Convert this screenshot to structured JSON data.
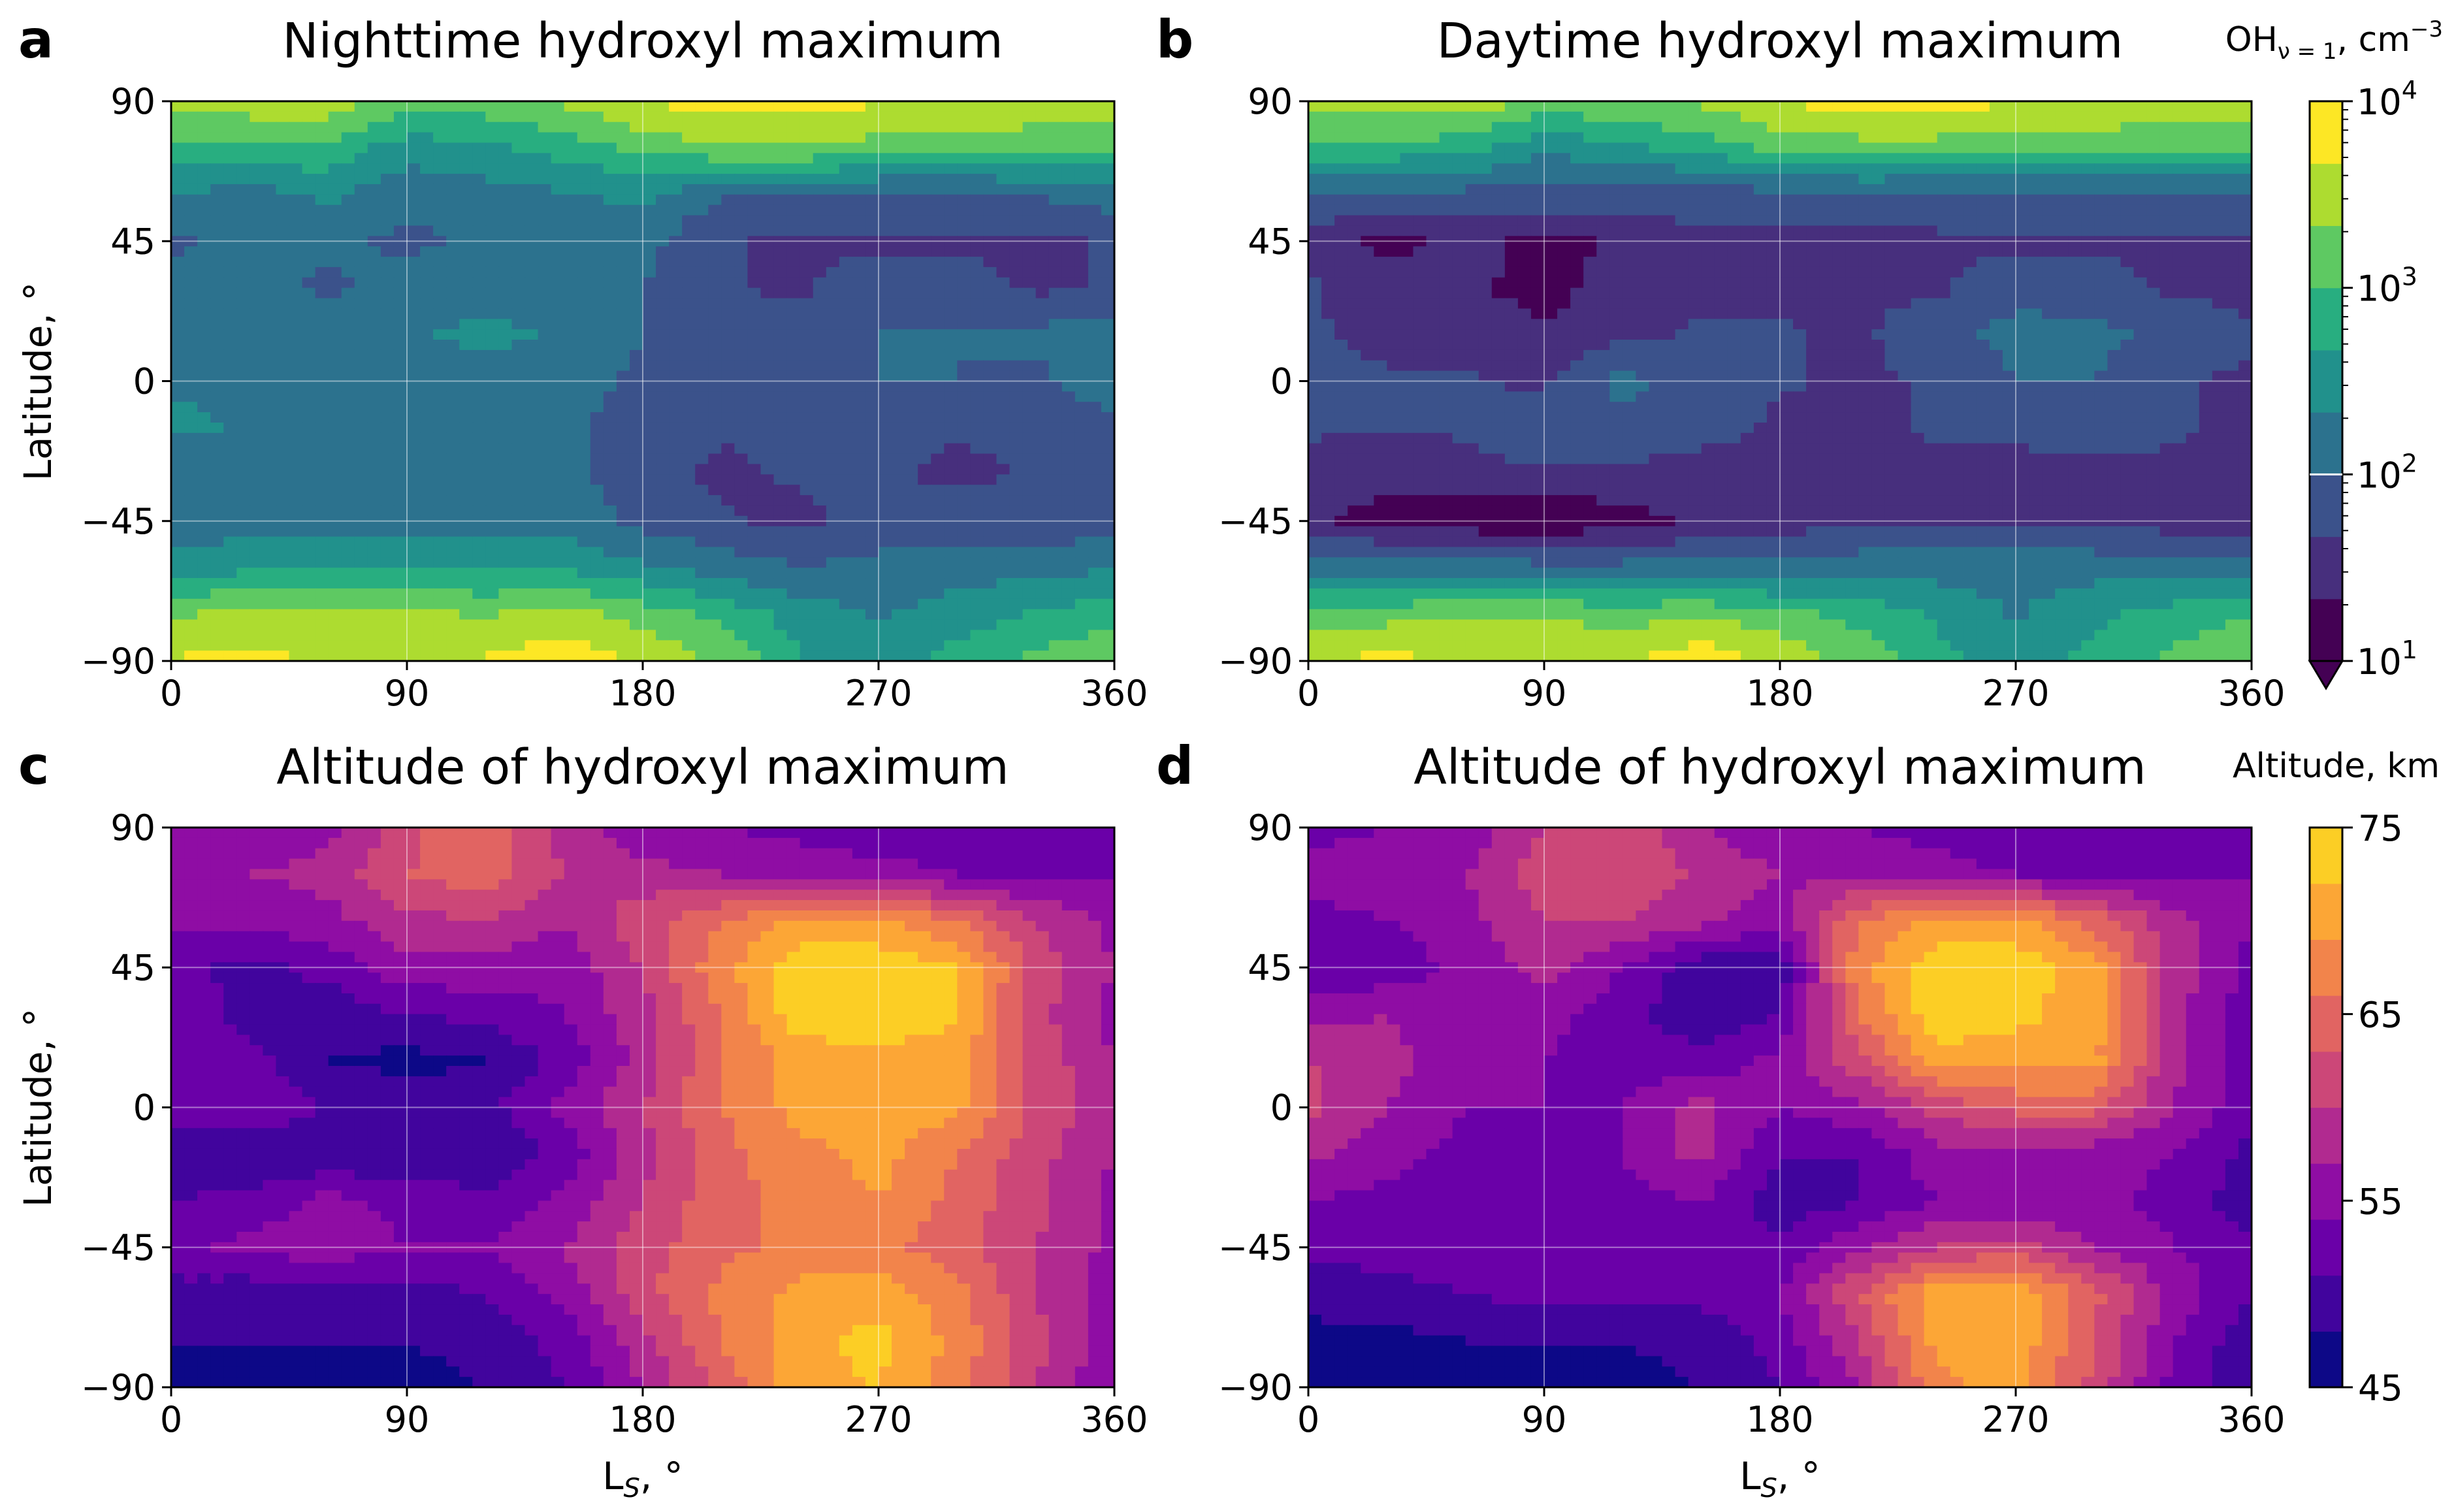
{
  "figure": {
    "panel_letters": [
      "a",
      "b",
      "c",
      "d"
    ],
    "colorbar_top": {
      "label": "OH",
      "label_sub": "ν = 1",
      "label_unit": ", cm",
      "label_sup": "−3",
      "ticks": [
        {
          "base": "10",
          "exp": "4",
          "value_log10": 4
        },
        {
          "base": "10",
          "exp": "3",
          "value_log10": 3
        },
        {
          "base": "10",
          "exp": "2",
          "value_log10": 2
        },
        {
          "base": "10",
          "exp": "1",
          "value_log10": 1
        }
      ],
      "range_log10": [
        1,
        4
      ],
      "marker_log10": 2,
      "colormap": "viridis",
      "colors": [
        "#440154",
        "#472f7d",
        "#3b528b",
        "#2c728e",
        "#21918c",
        "#28ae80",
        "#5ec962",
        "#addc30",
        "#fde725"
      ]
    },
    "colorbar_bottom": {
      "label": "Altitude, km",
      "ticks": [
        "75",
        "65",
        "55",
        "45"
      ],
      "tick_values": [
        75,
        65,
        55,
        45
      ],
      "range": [
        45,
        75
      ],
      "colormap": "plasma",
      "colors": [
        "#0d0887",
        "#41049d",
        "#6a00a8",
        "#8f0da4",
        "#b12a90",
        "#cc4778",
        "#e16462",
        "#f2844b",
        "#fca636",
        "#fcce25"
      ]
    }
  },
  "chart_data": [
    {
      "type": "heatmap",
      "panel": "a",
      "title": "Nighttime hydroxyl maximum",
      "xlabel": "",
      "ylabel": "Latitude, °",
      "x_ticks": [
        "0",
        "90",
        "180",
        "270",
        "360"
      ],
      "y_ticks": [
        "90",
        "45",
        "0",
        "−45",
        "−90"
      ],
      "xlim": [
        0,
        360
      ],
      "ylim": [
        -90,
        90
      ],
      "grid": true,
      "colorbar": "colorbar_top",
      "x_nodes": [
        0,
        30,
        60,
        90,
        120,
        150,
        180,
        210,
        240,
        270,
        300,
        330,
        360
      ],
      "lat_nodes": [
        90,
        75,
        60,
        45,
        30,
        15,
        0,
        -15,
        -30,
        -45,
        -60,
        -75,
        -90
      ],
      "z_log10_rows": [
        [
          3.4,
          3.5,
          3.6,
          3.1,
          3.2,
          3.4,
          3.7,
          3.8,
          3.8,
          3.7,
          3.7,
          3.6,
          3.5
        ],
        [
          2.9,
          3.0,
          2.9,
          2.5,
          2.6,
          2.8,
          3.1,
          3.3,
          3.3,
          3.2,
          3.1,
          3.1,
          3.0
        ],
        [
          2.3,
          2.2,
          2.4,
          2.1,
          2.2,
          2.3,
          2.4,
          2.0,
          2.0,
          1.9,
          1.9,
          2.0,
          2.2
        ],
        [
          1.9,
          2.2,
          2.1,
          1.9,
          2.1,
          2.2,
          2.1,
          1.7,
          1.6,
          1.6,
          1.6,
          1.6,
          1.7
        ],
        [
          2.2,
          2.2,
          1.9,
          2.2,
          2.2,
          2.3,
          2.0,
          1.7,
          1.6,
          1.9,
          1.8,
          1.6,
          1.7
        ],
        [
          2.3,
          2.3,
          2.3,
          2.3,
          2.4,
          2.3,
          2.0,
          1.8,
          1.9,
          2.0,
          2.0,
          2.1,
          2.2
        ],
        [
          2.3,
          2.3,
          2.3,
          2.2,
          2.2,
          2.2,
          1.9,
          1.8,
          1.9,
          2.0,
          2.0,
          1.9,
          2.3
        ],
        [
          2.4,
          2.3,
          2.2,
          2.2,
          2.2,
          2.1,
          1.8,
          1.7,
          1.8,
          1.8,
          1.7,
          1.7,
          1.8
        ],
        [
          2.1,
          2.2,
          2.2,
          2.2,
          2.2,
          2.1,
          1.8,
          1.6,
          1.7,
          1.7,
          1.6,
          1.7,
          1.7
        ],
        [
          2.0,
          2.2,
          2.2,
          2.2,
          2.2,
          2.2,
          1.9,
          1.7,
          1.6,
          1.8,
          1.8,
          1.8,
          1.8
        ],
        [
          2.5,
          2.6,
          2.7,
          2.6,
          2.6,
          2.6,
          2.4,
          2.2,
          2.0,
          2.1,
          2.2,
          2.2,
          2.3
        ],
        [
          3.3,
          3.4,
          3.5,
          3.4,
          3.3,
          3.5,
          3.2,
          2.9,
          2.5,
          2.3,
          2.5,
          2.7,
          2.9
        ],
        [
          3.7,
          3.8,
          3.6,
          3.6,
          3.7,
          3.9,
          3.6,
          3.3,
          2.7,
          2.4,
          2.8,
          3.1,
          3.3
        ]
      ]
    },
    {
      "type": "heatmap",
      "panel": "b",
      "title": "Daytime hydroxyl maximum",
      "xlabel": "",
      "ylabel": "",
      "x_ticks": [
        "0",
        "90",
        "180",
        "270",
        "360"
      ],
      "y_ticks": [
        "90",
        "45",
        "0",
        "−45",
        "−90"
      ],
      "xlim": [
        0,
        360
      ],
      "ylim": [
        -90,
        90
      ],
      "grid": true,
      "colorbar": "colorbar_top",
      "x_nodes": [
        0,
        30,
        60,
        90,
        120,
        150,
        180,
        210,
        240,
        270,
        300,
        330,
        360
      ],
      "lat_nodes": [
        90,
        75,
        60,
        45,
        30,
        15,
        0,
        -15,
        -30,
        -45,
        -60,
        -75,
        -90
      ],
      "z_log10_rows": [
        [
          3.4,
          3.5,
          3.6,
          3.2,
          3.3,
          3.4,
          3.7,
          3.8,
          3.8,
          3.7,
          3.7,
          3.6,
          3.5
        ],
        [
          2.9,
          2.9,
          2.8,
          2.4,
          2.6,
          2.8,
          3.1,
          3.2,
          3.2,
          3.1,
          3.1,
          3.0,
          3.0
        ],
        [
          2.0,
          1.9,
          1.9,
          1.9,
          1.9,
          1.8,
          1.9,
          1.9,
          1.9,
          1.9,
          1.9,
          1.9,
          2.0
        ],
        [
          1.6,
          1.2,
          1.5,
          1.2,
          1.4,
          1.6,
          1.6,
          1.5,
          1.6,
          1.6,
          1.6,
          1.6,
          1.6
        ],
        [
          1.7,
          1.5,
          1.4,
          1.2,
          1.5,
          1.6,
          1.6,
          1.6,
          1.6,
          1.9,
          1.8,
          1.6,
          1.6
        ],
        [
          1.7,
          1.6,
          1.5,
          1.4,
          1.6,
          1.7,
          1.7,
          1.6,
          1.9,
          2.1,
          2.1,
          1.9,
          1.7
        ],
        [
          1.7,
          1.7,
          1.7,
          1.6,
          2.1,
          1.8,
          1.7,
          1.6,
          1.7,
          2.0,
          2.0,
          1.7,
          1.6
        ],
        [
          1.7,
          1.7,
          1.7,
          1.9,
          1.9,
          1.8,
          1.6,
          1.6,
          1.7,
          1.7,
          1.8,
          1.7,
          1.6
        ],
        [
          1.6,
          1.4,
          1.6,
          1.6,
          1.6,
          1.5,
          1.5,
          1.6,
          1.6,
          1.6,
          1.6,
          1.6,
          1.6
        ],
        [
          1.4,
          1.2,
          1.1,
          1.0,
          1.2,
          1.4,
          1.5,
          1.6,
          1.6,
          1.6,
          1.6,
          1.5,
          1.4
        ],
        [
          2.2,
          2.2,
          2.2,
          2.1,
          2.1,
          2.1,
          2.1,
          2.2,
          2.2,
          2.2,
          2.2,
          2.2,
          2.2
        ],
        [
          3.1,
          3.2,
          3.3,
          3.3,
          3.2,
          3.3,
          3.1,
          2.9,
          2.6,
          2.3,
          2.6,
          2.8,
          3.0
        ],
        [
          3.6,
          3.8,
          3.6,
          3.7,
          3.6,
          3.9,
          3.6,
          3.2,
          2.8,
          2.4,
          2.8,
          3.1,
          3.3
        ]
      ]
    },
    {
      "type": "heatmap",
      "panel": "c",
      "title": "Altitude of hydroxyl maximum",
      "xlabel": "L",
      "xlabel_sub": "S",
      "xlabel_suffix": ", °",
      "ylabel": "Latitude, °",
      "x_ticks": [
        "0",
        "90",
        "180",
        "270",
        "360"
      ],
      "y_ticks": [
        "90",
        "45",
        "0",
        "−45",
        "−90"
      ],
      "xlim": [
        0,
        360
      ],
      "ylim": [
        -90,
        90
      ],
      "grid": true,
      "colorbar": "colorbar_bottom",
      "x_nodes": [
        0,
        30,
        60,
        90,
        120,
        150,
        180,
        210,
        240,
        270,
        300,
        330,
        360
      ],
      "lat_nodes": [
        90,
        75,
        60,
        45,
        30,
        15,
        0,
        -15,
        -30,
        -45,
        -60,
        -75,
        -90
      ],
      "z_rows": [
        [
          54,
          55,
          56,
          62,
          66,
          58,
          55,
          54,
          53,
          52,
          52,
          51,
          52
        ],
        [
          56,
          57,
          58,
          63,
          65,
          60,
          58,
          57,
          56,
          55,
          54,
          53,
          54
        ],
        [
          55,
          55,
          56,
          59,
          60,
          57,
          62,
          66,
          70,
          70,
          66,
          60,
          56
        ],
        [
          52,
          50,
          52,
          56,
          56,
          55,
          60,
          68,
          74,
          74,
          72,
          62,
          57
        ],
        [
          53,
          50,
          49,
          51,
          52,
          54,
          59,
          66,
          74,
          74,
          72,
          61,
          56
        ],
        [
          52,
          52,
          48,
          47,
          48,
          52,
          58,
          66,
          70,
          71,
          71,
          62,
          57
        ],
        [
          53,
          54,
          51,
          50,
          50,
          55,
          60,
          66,
          70,
          71,
          70,
          62,
          58
        ],
        [
          49,
          48,
          48,
          49,
          48,
          52,
          59,
          65,
          68,
          70,
          66,
          61,
          57
        ],
        [
          51,
          52,
          55,
          53,
          52,
          55,
          60,
          65,
          67,
          69,
          65,
          61,
          56
        ],
        [
          53,
          55,
          56,
          54,
          54,
          57,
          62,
          65,
          67,
          67,
          64,
          60,
          56
        ],
        [
          50,
          49,
          49,
          50,
          51,
          55,
          62,
          67,
          70,
          71,
          67,
          60,
          55
        ],
        [
          48,
          48,
          48,
          48,
          49,
          52,
          59,
          66,
          71,
          73,
          68,
          61,
          55
        ],
        [
          47,
          47,
          47,
          47,
          48,
          51,
          57,
          64,
          71,
          72,
          67,
          60,
          54
        ]
      ]
    },
    {
      "type": "heatmap",
      "panel": "d",
      "title": "Altitude of hydroxyl maximum",
      "xlabel": "L",
      "xlabel_sub": "S",
      "xlabel_suffix": ", °",
      "ylabel": "",
      "x_ticks": [
        "0",
        "90",
        "180",
        "270",
        "360"
      ],
      "y_ticks": [
        "90",
        "45",
        "0",
        "−45",
        "−90"
      ],
      "xlim": [
        0,
        360
      ],
      "ylim": [
        -90,
        90
      ],
      "grid": true,
      "colorbar": "colorbar_bottom",
      "x_nodes": [
        0,
        30,
        60,
        90,
        120,
        150,
        180,
        210,
        240,
        270,
        300,
        330,
        360
      ],
      "lat_nodes": [
        90,
        75,
        60,
        45,
        30,
        15,
        0,
        -15,
        -30,
        -45,
        -60,
        -75,
        -90
      ],
      "z_rows": [
        [
          53,
          54,
          55,
          60,
          63,
          57,
          55,
          54,
          53,
          52,
          52,
          51,
          52
        ],
        [
          55,
          56,
          57,
          62,
          63,
          59,
          57,
          56,
          55,
          54,
          53,
          53,
          54
        ],
        [
          53,
          54,
          56,
          60,
          60,
          58,
          55,
          66,
          70,
          70,
          65,
          58,
          54
        ],
        [
          51,
          52,
          55,
          58,
          54,
          49,
          49,
          68,
          74,
          74,
          70,
          59,
          53
        ],
        [
          56,
          57,
          55,
          55,
          52,
          49,
          51,
          66,
          74,
          73,
          70,
          58,
          52
        ],
        [
          60,
          58,
          55,
          54,
          53,
          52,
          55,
          62,
          71,
          70,
          70,
          58,
          52
        ],
        [
          61,
          57,
          54,
          54,
          54,
          58,
          54,
          56,
          61,
          64,
          64,
          57,
          52
        ],
        [
          58,
          55,
          53,
          53,
          54,
          58,
          51,
          51,
          56,
          56,
          55,
          54,
          50
        ],
        [
          54,
          53,
          53,
          53,
          53,
          54,
          49,
          51,
          54,
          54,
          55,
          53,
          49
        ],
        [
          52,
          52,
          53,
          53,
          53,
          53,
          52,
          56,
          60,
          61,
          57,
          54,
          52
        ],
        [
          49,
          50,
          51,
          52,
          52,
          52,
          54,
          63,
          71,
          72,
          64,
          56,
          51
        ],
        [
          47,
          47,
          48,
          48,
          48,
          49,
          52,
          60,
          70,
          71,
          63,
          54,
          49
        ],
        [
          47,
          47,
          47,
          47,
          47,
          48,
          51,
          57,
          68,
          70,
          62,
          53,
          48
        ]
      ]
    }
  ]
}
